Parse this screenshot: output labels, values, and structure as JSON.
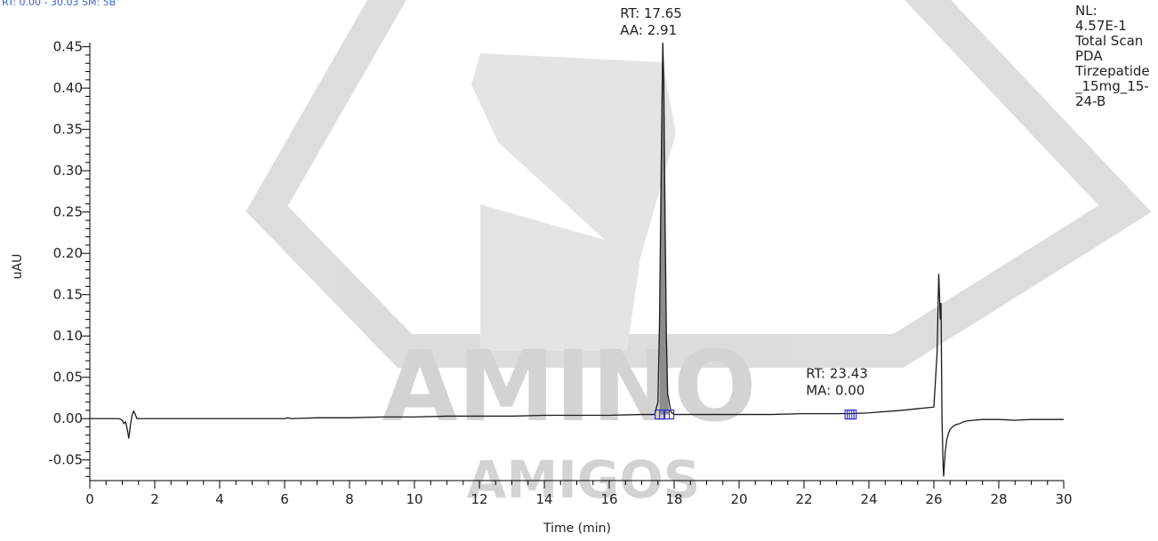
{
  "header": {
    "text": "RT: 0.00 - 30.03   SM: 5B"
  },
  "watermark": {
    "line1": "AMINO",
    "line2": "AMIGOS"
  },
  "side_info": {
    "lines": [
      "NL:",
      "4.57E-1",
      "Total Scan",
      "PDA",
      "Tirzepatide",
      "_15mg_15-",
      "24-B"
    ]
  },
  "colors": {
    "trace": "#1a1a1a",
    "peak_fill": "#8c8c8c",
    "marker": "#3333cc",
    "axis": "#000000",
    "header": "#3a5fcd"
  },
  "chart_data": {
    "type": "line",
    "title": "",
    "xlabel": "Time (min)",
    "ylabel": "uAU",
    "xlim": [
      0,
      30
    ],
    "ylim": [
      -0.075,
      0.455
    ],
    "xticks": [
      0,
      2,
      4,
      6,
      8,
      10,
      12,
      14,
      16,
      18,
      20,
      22,
      24,
      26,
      28,
      30
    ],
    "xtick_labels": [
      "0",
      "2",
      "4",
      "6",
      "8",
      "10",
      "12",
      "14",
      "16",
      "18",
      "20",
      "22",
      "24",
      "26",
      "28",
      "30"
    ],
    "yticks": [
      -0.05,
      0.0,
      0.05,
      0.1,
      0.15,
      0.2,
      0.25,
      0.3,
      0.35,
      0.4,
      0.45
    ],
    "ytick_labels": [
      "-0.05",
      "0.00",
      "0.05",
      "0.10",
      "0.15",
      "0.20",
      "0.25",
      "0.30",
      "0.35",
      "0.40",
      "0.45"
    ],
    "series": [
      {
        "x": [
          0.0,
          0.9,
          1.0,
          1.05,
          1.1,
          1.15,
          1.2,
          1.25,
          1.3,
          1.35,
          1.4,
          1.45,
          1.5,
          2.0,
          3.0,
          4.0,
          5.0,
          6.0,
          6.1,
          6.2,
          7.0,
          8.0,
          9.0,
          10.0,
          11.0,
          12.0,
          13.0,
          14.0,
          15.0,
          16.0,
          17.0,
          17.4,
          17.5,
          17.55,
          17.6,
          17.63,
          17.65,
          17.68,
          17.72,
          17.76,
          17.8,
          17.9,
          18.0,
          19.0,
          20.0,
          21.0,
          22.0,
          23.0,
          23.43,
          24.0,
          25.0,
          25.5,
          26.0,
          26.1,
          26.15,
          26.2,
          26.22,
          26.25,
          26.28,
          26.3,
          26.35,
          26.4,
          26.45,
          26.5,
          26.6,
          26.7,
          26.8,
          26.9,
          27.0,
          27.2,
          27.5,
          28.0,
          28.5,
          29.0,
          29.5,
          30.0
        ],
        "y": [
          0.0,
          0.0,
          -0.002,
          -0.006,
          -0.004,
          -0.012,
          -0.024,
          -0.008,
          0.004,
          0.009,
          0.005,
          0.0,
          0.0,
          0.0,
          0.0,
          0.0,
          0.0,
          0.0,
          0.001,
          0.0,
          0.001,
          0.001,
          0.002,
          0.002,
          0.003,
          0.003,
          0.003,
          0.004,
          0.004,
          0.004,
          0.005,
          0.005,
          0.02,
          0.12,
          0.3,
          0.4,
          0.455,
          0.41,
          0.24,
          0.1,
          0.03,
          0.008,
          0.005,
          0.005,
          0.005,
          0.005,
          0.006,
          0.006,
          0.006,
          0.007,
          0.01,
          0.012,
          0.014,
          0.08,
          0.175,
          0.12,
          0.14,
          0.0,
          -0.05,
          -0.07,
          -0.04,
          -0.025,
          -0.018,
          -0.013,
          -0.009,
          -0.007,
          -0.006,
          -0.004,
          -0.003,
          -0.002,
          -0.001,
          -0.001,
          -0.002,
          -0.001,
          -0.001,
          -0.001
        ]
      }
    ],
    "peaks": [
      {
        "rt_label": "RT: 17.65",
        "area_label": "AA: 2.91",
        "x": 17.65,
        "y": 0.455,
        "start": 17.55,
        "end": 17.85
      },
      {
        "rt_label": "RT: 23.43",
        "area_label": "MA: 0.00",
        "x": 23.43,
        "y": 0.006,
        "start": 23.4,
        "end": 23.47
      }
    ],
    "grid": false,
    "legend": "none"
  }
}
